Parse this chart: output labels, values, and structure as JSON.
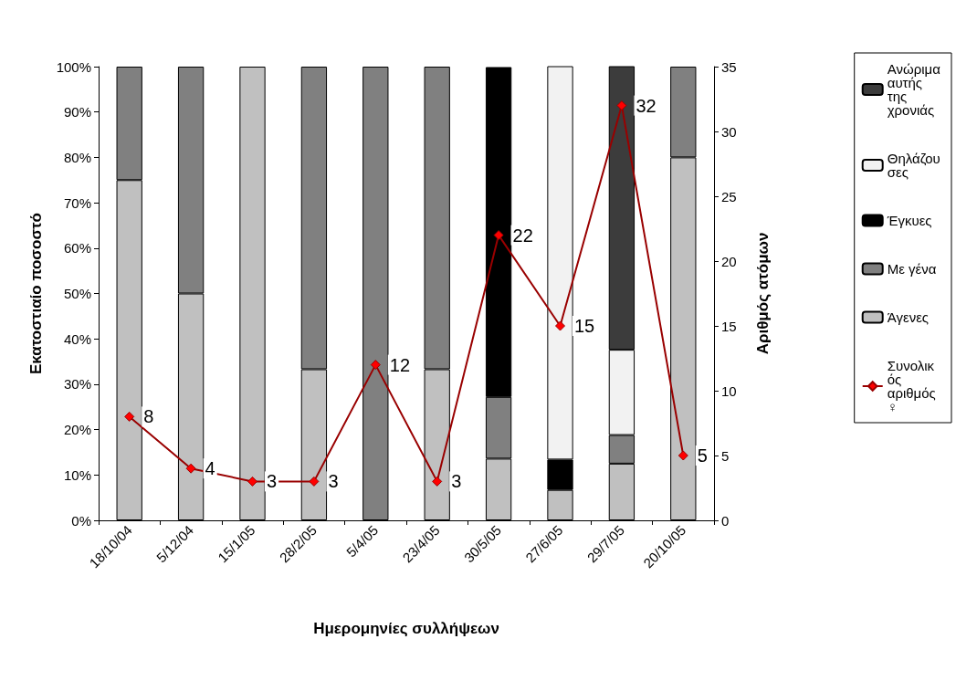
{
  "chart_data": {
    "type": "bar",
    "stacked": true,
    "xlabel": "Ημερομηνίες συλλήψεων",
    "ylabel": "Εκατοστιαίο ποσοστό",
    "y2label": "Αριθμός ατόμων",
    "categories": [
      "18/10/04",
      "5/12/04",
      "15/1/05",
      "28/2/05",
      "5/4/05",
      "23/4/05",
      "30/5/05",
      "27/6/05",
      "29/7/05",
      "20/10/05"
    ],
    "series": [
      {
        "name": "Άγενες",
        "color": "#c0c0c0",
        "values": [
          75,
          50,
          100,
          33.3,
          null,
          33.3,
          13.6,
          6.7,
          12.5,
          80
        ]
      },
      {
        "name": "Με γένα",
        "color": "#808080",
        "values": [
          25,
          50,
          null,
          66.7,
          100,
          66.7,
          13.6,
          null,
          6.3,
          20
        ]
      },
      {
        "name": "Έγκυες",
        "color": "#000000",
        "values": [
          null,
          null,
          null,
          null,
          null,
          null,
          72.7,
          6.7,
          null,
          null
        ]
      },
      {
        "name": "Θηλάζουσες",
        "color": "#f2f2f2",
        "values": [
          null,
          null,
          null,
          null,
          null,
          null,
          null,
          86.7,
          18.8,
          null
        ]
      },
      {
        "name": "Ανώριμα αυτής της χρονιάς",
        "color": "#3c3c3c",
        "values": [
          null,
          null,
          null,
          null,
          null,
          null,
          null,
          null,
          62.5,
          null
        ]
      },
      {
        "name": "Συνολικός αριθμός ♀",
        "type": "line",
        "axis": "y2",
        "color": "#990000",
        "marker": "diamond",
        "data_labels": true,
        "values": [
          8,
          4,
          3,
          3,
          12,
          3,
          22,
          15,
          32,
          5
        ]
      }
    ],
    "ylim": [
      0,
      100
    ],
    "yticks": [
      {
        "value": 0,
        "label": "0%"
      },
      {
        "value": 10,
        "label": "10%"
      },
      {
        "value": 20,
        "label": "20%"
      },
      {
        "value": 30,
        "label": "30%"
      },
      {
        "value": 40,
        "label": "40%"
      },
      {
        "value": 50,
        "label": "50%"
      },
      {
        "value": 60,
        "label": "60%"
      },
      {
        "value": 70,
        "label": "70%"
      },
      {
        "value": 80,
        "label": "80%"
      },
      {
        "value": 90,
        "label": "90%"
      },
      {
        "value": 100,
        "label": "100%"
      }
    ],
    "y2lim": [
      0,
      35
    ],
    "y2ticks": [
      0,
      5,
      10,
      15,
      20,
      25,
      30,
      35
    ],
    "grid": false,
    "legend": "right"
  }
}
